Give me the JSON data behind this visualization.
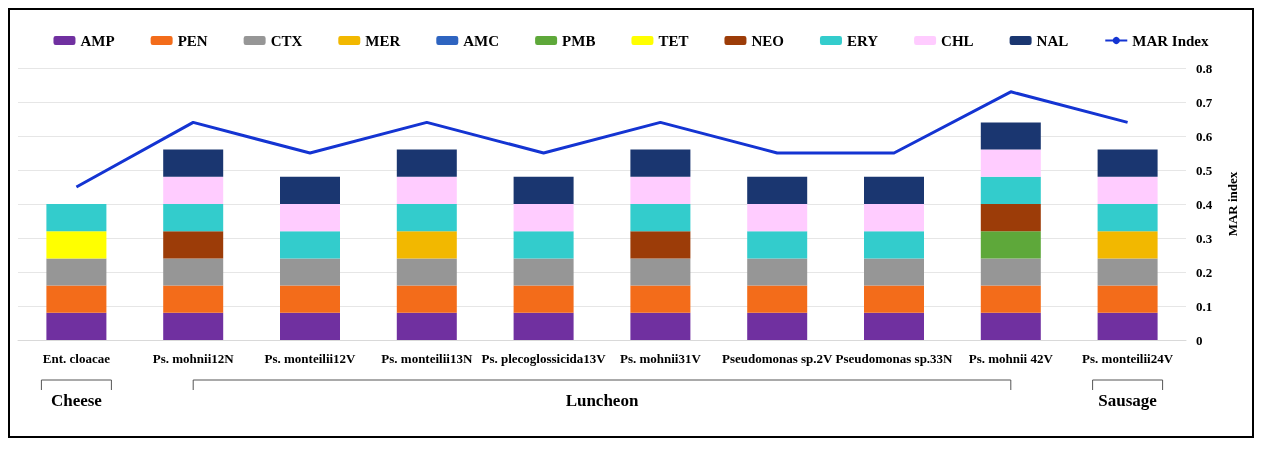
{
  "chart_data": {
    "type": "bar",
    "stacked": true,
    "ylabel": "MAR index",
    "categories": [
      "Ent. cloacae",
      "Ps. mohnii12N",
      "Ps. monteilii12V",
      "Ps. monteilii13N",
      "Ps. plecoglossicida13V",
      "Ps. mohnii31V",
      "Pseudomonas sp.2V",
      "Pseudomonas sp.33N",
      "Ps. mohnii 42V",
      "Ps. monteilii24V"
    ],
    "series": [
      {
        "name": "AMP",
        "color": "#7030a0",
        "values": [
          0.08,
          0.08,
          0.08,
          0.08,
          0.08,
          0.08,
          0.08,
          0.08,
          0.08,
          0.08
        ]
      },
      {
        "name": "PEN",
        "color": "#f36c1a",
        "values": [
          0.08,
          0.08,
          0.08,
          0.08,
          0.08,
          0.08,
          0.08,
          0.08,
          0.08,
          0.08
        ]
      },
      {
        "name": "CTX",
        "color": "#969696",
        "values": [
          0.08,
          0.08,
          0.08,
          0.08,
          0.08,
          0.08,
          0.08,
          0.08,
          0.08,
          0.08
        ]
      },
      {
        "name": "MER",
        "color": "#f2b800",
        "values": [
          null,
          null,
          null,
          0.08,
          null,
          null,
          null,
          null,
          null,
          0.08
        ]
      },
      {
        "name": "AMC",
        "color": "#2e64c0",
        "values": [
          null,
          null,
          null,
          null,
          null,
          null,
          null,
          null,
          null,
          null
        ]
      },
      {
        "name": "PMB",
        "color": "#5ea83a",
        "values": [
          null,
          null,
          null,
          null,
          null,
          null,
          null,
          null,
          0.08,
          null
        ]
      },
      {
        "name": "TET",
        "color": "#ffff00",
        "values": [
          0.08,
          null,
          null,
          null,
          null,
          null,
          null,
          null,
          null,
          null
        ]
      },
      {
        "name": "NEO",
        "color": "#9c3c08",
        "values": [
          null,
          0.08,
          null,
          null,
          null,
          0.08,
          null,
          null,
          0.08,
          null
        ]
      },
      {
        "name": "ERY",
        "color": "#33cccc",
        "values": [
          0.08,
          0.08,
          0.08,
          0.08,
          0.08,
          0.08,
          0.08,
          0.08,
          0.08,
          0.08
        ]
      },
      {
        "name": "CHL",
        "color": "#ffccff",
        "values": [
          null,
          0.08,
          0.08,
          0.08,
          0.08,
          0.08,
          0.08,
          0.08,
          0.08,
          0.08
        ]
      },
      {
        "name": "NAL",
        "color": "#1a3670",
        "values": [
          null,
          0.08,
          0.08,
          0.08,
          0.08,
          0.08,
          0.08,
          0.08,
          0.08,
          0.08
        ]
      },
      {
        "name": "MAR Index",
        "type": "line",
        "color": "#1434d2",
        "values": [
          0.45,
          0.64,
          0.55,
          0.64,
          0.55,
          0.64,
          0.55,
          0.55,
          0.73,
          0.64
        ]
      }
    ],
    "ylim": [
      0,
      0.8
    ],
    "yticks": [
      0,
      0.1,
      0.2,
      0.3,
      0.4,
      0.5,
      0.6,
      0.7,
      0.8
    ],
    "grid": "y",
    "legend": "top",
    "marker": "none",
    "line_style": "solid",
    "annotations": [
      "Cheese",
      "Luncheon",
      "Sausage"
    ]
  }
}
